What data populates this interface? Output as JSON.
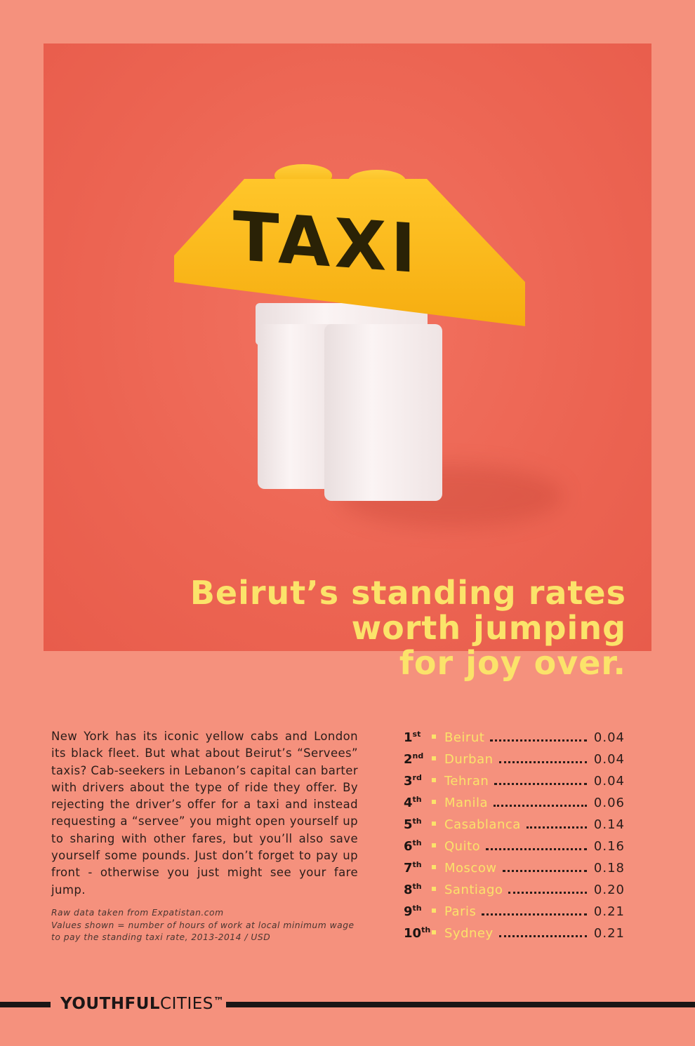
{
  "photo": {
    "label": "TAXI",
    "brick_color": "#f8b618",
    "background_color": "#ec6452"
  },
  "headline": {
    "lines": [
      "Beirut’s standing rates",
      "worth jumping",
      "for joy over."
    ],
    "color": "#fbe36a"
  },
  "body": {
    "lines": [
      "New York has its iconic yellow cabs and London",
      "its black fleet. But what about Beirut’s “Servees”",
      "taxis? Cab-seekers in Lebanon’s capital can barter",
      "with drivers about the type of ride they offer. By",
      "rejecting the driver’s offer for a taxi and instead",
      "requesting a “servee” you might open yourself up",
      "to sharing with other fares, but you’ll also save",
      "yourself some pounds. Just don’t forget to pay up",
      "front - otherwise you just might see your fare jump."
    ]
  },
  "notes": [
    "Raw data taken from Expatistan.com",
    "Values shown = number of hours of work at local minimum wage",
    "to pay the standing taxi rate, 2013-2014 / USD"
  ],
  "ranking": [
    {
      "num": "1",
      "suffix": "st",
      "city": "Beirut",
      "value": "0.04"
    },
    {
      "num": "2",
      "suffix": "nd",
      "city": "Durban",
      "value": "0.04"
    },
    {
      "num": "3",
      "suffix": "rd",
      "city": "Tehran",
      "value": "0.04"
    },
    {
      "num": "4",
      "suffix": "th",
      "city": "Manila",
      "value": "0.06"
    },
    {
      "num": "5",
      "suffix": "th",
      "city": "Casablanca",
      "value": "0.14"
    },
    {
      "num": "6",
      "suffix": "th",
      "city": "Quito",
      "value": "0.16"
    },
    {
      "num": "7",
      "suffix": "th",
      "city": "Moscow",
      "value": "0.18"
    },
    {
      "num": "8",
      "suffix": "th",
      "city": "Santiago",
      "value": "0.20"
    },
    {
      "num": "9",
      "suffix": "th",
      "city": "Paris",
      "value": "0.21"
    },
    {
      "num": "10",
      "suffix": "th",
      "city": "Sydney",
      "value": "0.21"
    }
  ],
  "footer": {
    "brand_bold": "YOUTHFUL",
    "brand_light": "CITIES",
    "trademark": "™"
  }
}
